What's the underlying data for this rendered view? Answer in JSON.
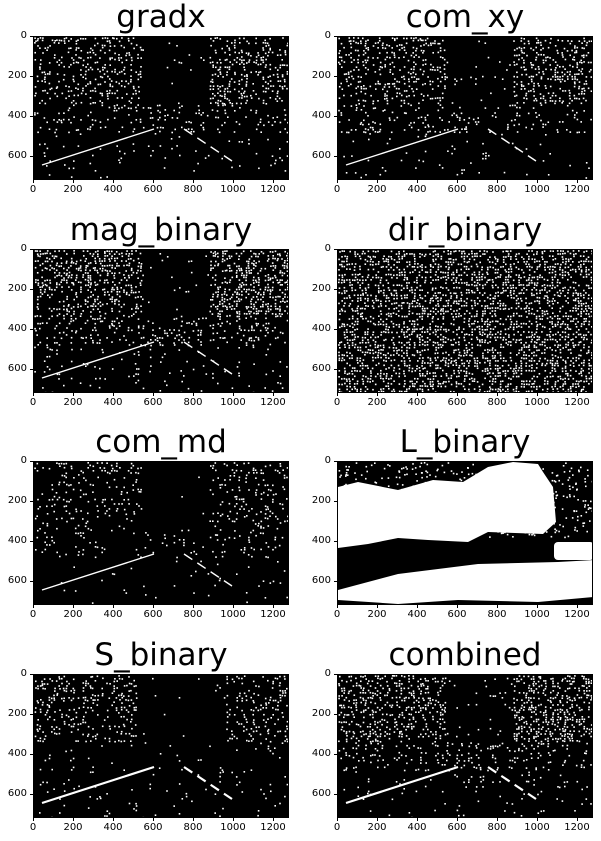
{
  "figure": {
    "panels": [
      {
        "title": "gradx",
        "seed": 11,
        "style": "gradient"
      },
      {
        "title": "com_xy",
        "seed": 23,
        "style": "gradient"
      },
      {
        "title": "mag_binary",
        "seed": 37,
        "style": "magnitude"
      },
      {
        "title": "dir_binary",
        "seed": 41,
        "style": "noise"
      },
      {
        "title": "com_md",
        "seed": 53,
        "style": "sparse"
      },
      {
        "title": "L_binary",
        "seed": 67,
        "style": "lightness"
      },
      {
        "title": "S_binary",
        "seed": 71,
        "style": "saturation"
      },
      {
        "title": "combined",
        "seed": 83,
        "style": "combined"
      }
    ],
    "y_ticks": [
      "0",
      "200",
      "400",
      "600"
    ],
    "x_ticks": [
      "0",
      "200",
      "400",
      "600",
      "800",
      "1000",
      "1200"
    ],
    "y_tick_values": [
      0,
      200,
      400,
      600
    ],
    "x_tick_values": [
      0,
      200,
      400,
      600,
      800,
      1000,
      1200
    ],
    "image_width": 1280,
    "image_height": 720,
    "colors": {
      "background": "#000000",
      "foreground": "#ffffff"
    }
  }
}
